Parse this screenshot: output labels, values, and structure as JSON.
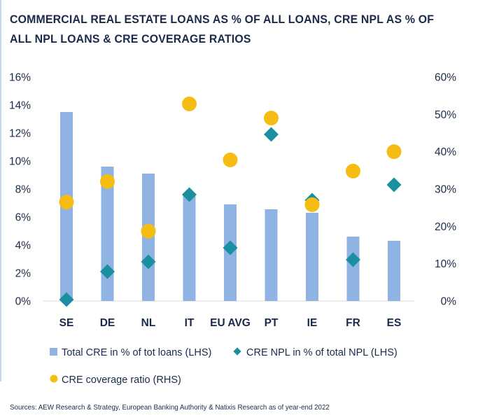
{
  "title": "COMMERCIAL REAL ESTATE LOANS AS % OF ALL LOANS, CRE NPL AS % OF ALL NPL LOANS & CRE COVERAGE RATIOS",
  "source": "Sources: AEW Research & Strategy, European Banking Authority & Natixis Research as of year-end 2022",
  "colors": {
    "bar": "#8fb3e2",
    "diamond": "#1a8f9f",
    "circle": "#f5bd13",
    "text": "#1b2a4a"
  },
  "chart_data": {
    "type": "bar",
    "categories": [
      "SE",
      "DE",
      "NL",
      "IT",
      "EU AVG",
      "PT",
      "IE",
      "FR",
      "ES"
    ],
    "series": [
      {
        "name": "Total CRE in % of tot loans (LHS)",
        "type": "bar",
        "axis": "left",
        "marker": "bar",
        "values": [
          13.5,
          9.6,
          9.1,
          7.7,
          6.9,
          6.55,
          6.3,
          4.6,
          4.3
        ]
      },
      {
        "name": "CRE NPL in % of total NPL (LHS)",
        "type": "scatter",
        "axis": "left",
        "marker": "diamond",
        "values": [
          0.1,
          2.1,
          2.8,
          7.6,
          3.8,
          11.9,
          7.2,
          2.95,
          8.3
        ]
      },
      {
        "name": "CRE coverage ratio (RHS)",
        "type": "scatter",
        "axis": "right",
        "marker": "circle",
        "values": [
          26.5,
          32.0,
          18.7,
          52.8,
          37.8,
          49.0,
          25.8,
          34.8,
          40.0
        ]
      }
    ],
    "left_axis": {
      "ylim": [
        0,
        16
      ],
      "ticks": [
        "0%",
        "2%",
        "4%",
        "6%",
        "8%",
        "10%",
        "12%",
        "14%",
        "16%"
      ]
    },
    "right_axis": {
      "ylim": [
        0,
        60
      ],
      "ticks": [
        "0%",
        "10%",
        "20%",
        "30%",
        "40%",
        "50%",
        "60%"
      ]
    },
    "grid": false,
    "legend_position": "bottom"
  }
}
